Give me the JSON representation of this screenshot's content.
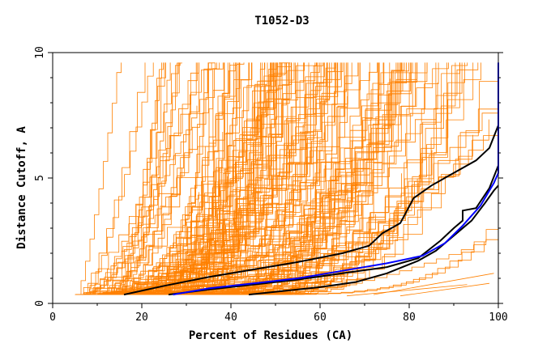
{
  "chart_data": {
    "type": "line",
    "title": "T1052-D3",
    "xlabel": "Percent of Residues (CA)",
    "ylabel": "Distance Cutoff, A",
    "xlim": [
      0,
      100
    ],
    "ylim": [
      0,
      10
    ],
    "x_ticks": [
      "0",
      "20",
      "40",
      "60",
      "80",
      "100"
    ],
    "y_ticks": [
      "0",
      "5",
      "10"
    ],
    "grid": false,
    "legend": "none",
    "colors": {
      "models": "#ff8000",
      "highlight": "#000000",
      "reference": "#0000ff",
      "frame": "#000000"
    },
    "series": [
      {
        "color": "#000000",
        "points": [
          [
            16,
            0.35
          ],
          [
            25,
            0.7
          ],
          [
            35,
            1.05
          ],
          [
            45,
            1.35
          ],
          [
            55,
            1.65
          ],
          [
            65,
            2.0
          ],
          [
            71,
            2.3
          ],
          [
            74,
            2.8
          ],
          [
            78,
            3.2
          ],
          [
            81,
            4.2
          ],
          [
            85,
            4.7
          ],
          [
            90,
            5.2
          ],
          [
            95,
            5.7
          ],
          [
            98,
            6.2
          ],
          [
            100,
            7.1
          ]
        ]
      },
      {
        "color": "#000000",
        "points": [
          [
            26,
            0.35
          ],
          [
            35,
            0.55
          ],
          [
            45,
            0.75
          ],
          [
            55,
            0.95
          ],
          [
            65,
            1.2
          ],
          [
            75,
            1.45
          ],
          [
            82,
            1.8
          ],
          [
            87,
            2.5
          ],
          [
            90,
            3.0
          ],
          [
            92,
            3.3
          ],
          [
            92,
            3.7
          ],
          [
            95,
            3.8
          ],
          [
            98,
            4.6
          ],
          [
            100,
            5.5
          ]
        ]
      },
      {
        "color": "#000000",
        "points": [
          [
            44,
            0.35
          ],
          [
            52,
            0.5
          ],
          [
            60,
            0.65
          ],
          [
            68,
            0.85
          ],
          [
            75,
            1.2
          ],
          [
            82,
            1.7
          ],
          [
            86,
            2.1
          ],
          [
            90,
            2.7
          ],
          [
            94,
            3.3
          ],
          [
            97,
            4.0
          ],
          [
            99,
            4.5
          ],
          [
            100,
            4.7
          ]
        ]
      },
      {
        "color": "#0000ff",
        "points": [
          [
            27,
            0.35
          ],
          [
            35,
            0.6
          ],
          [
            45,
            0.8
          ],
          [
            55,
            1.0
          ],
          [
            65,
            1.3
          ],
          [
            75,
            1.6
          ],
          [
            83,
            1.9
          ],
          [
            88,
            2.4
          ],
          [
            92,
            3.1
          ],
          [
            96,
            3.9
          ],
          [
            99,
            4.8
          ],
          [
            100,
            5.2
          ],
          [
            100,
            9.6
          ]
        ]
      }
    ]
  }
}
